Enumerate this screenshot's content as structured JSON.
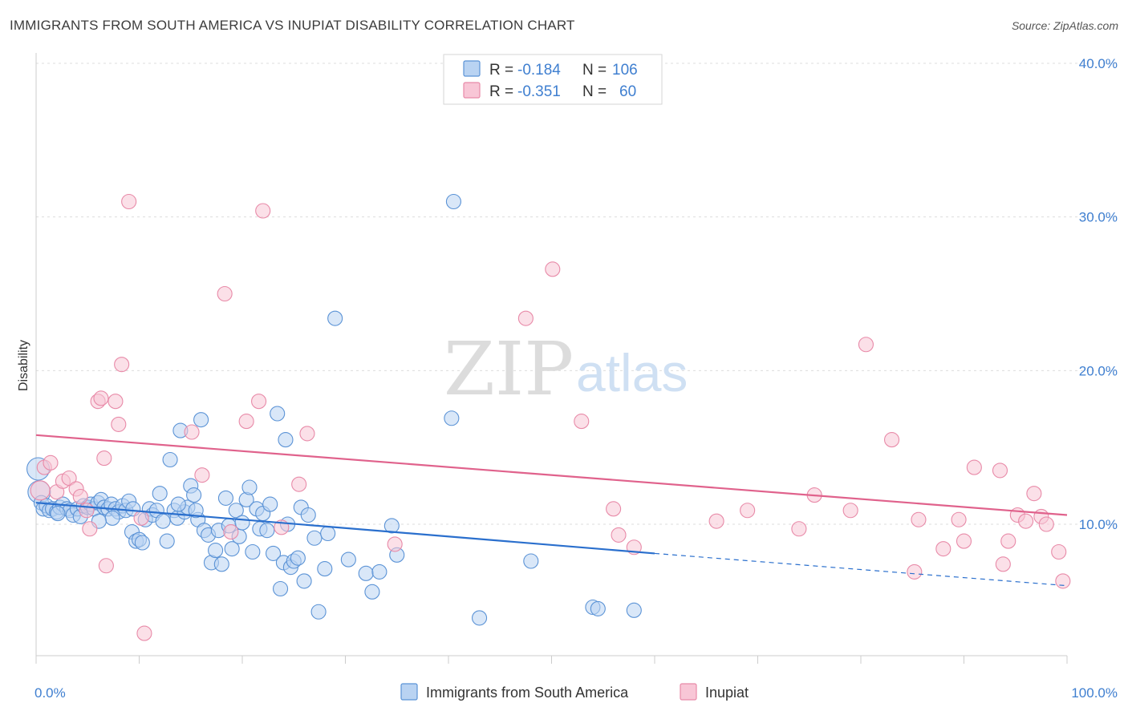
{
  "title": "IMMIGRANTS FROM SOUTH AMERICA VS INUPIAT DISABILITY CORRELATION CHART",
  "source": "Source: ZipAtlas.com",
  "watermark": {
    "zip": "ZIP",
    "atlas": "atlas"
  },
  "colors": {
    "blue_fill": "#b9d3f2",
    "blue_stroke": "#5b93d6",
    "blue_line": "#2a6fcd",
    "pink_fill": "#f8c6d6",
    "pink_stroke": "#e88aa8",
    "pink_line": "#e0628c",
    "axis_text": "#3f7fd0",
    "grid": "#dddddd"
  },
  "legend": {
    "rows": [
      {
        "r_label": "R = ",
        "r_value": "-0.184",
        "n_label": "N = ",
        "n_value": "106"
      },
      {
        "r_label": "R = ",
        "r_value": "-0.351",
        "n_label": "N = ",
        "n_value": "60"
      }
    ]
  },
  "chart_data": {
    "type": "scatter",
    "title": "IMMIGRANTS FROM SOUTH AMERICA VS INUPIAT DISABILITY CORRELATION CHART",
    "xlabel": "",
    "ylabel": "Disability",
    "xlim": [
      0,
      100
    ],
    "ylim": [
      0,
      42
    ],
    "x_tick_labels": [
      "0.0%",
      "100.0%"
    ],
    "y_ticks": [
      10,
      20,
      30,
      40
    ],
    "y_tick_labels": [
      "10.0%",
      "20.0%",
      "30.0%",
      "40.0%"
    ],
    "grid": "horizontal dashed",
    "legend_position": "top-center",
    "series": [
      {
        "name": "Immigrants from South America",
        "r": -0.184,
        "n": 106,
        "trend": {
          "x": [
            0,
            60
          ],
          "y": [
            11.4,
            8.1
          ],
          "dashed_extension": {
            "x": [
              60,
              100
            ],
            "y": [
              8.1,
              6.0
            ]
          }
        },
        "points": [
          [
            0.2,
            13.6
          ],
          [
            0.3,
            12.1
          ],
          [
            0.5,
            11.4
          ],
          [
            0.7,
            11.0
          ],
          [
            1.0,
            11.2
          ],
          [
            1.3,
            10.9
          ],
          [
            1.6,
            11.0
          ],
          [
            2.0,
            10.8
          ],
          [
            2.3,
            11.1
          ],
          [
            2.6,
            11.3
          ],
          [
            3.0,
            11.0
          ],
          [
            3.3,
            10.9
          ],
          [
            3.6,
            10.6
          ],
          [
            4.0,
            11.0
          ],
          [
            4.3,
            10.5
          ],
          [
            4.6,
            11.2
          ],
          [
            5.0,
            11.1
          ],
          [
            5.3,
            11.3
          ],
          [
            5.6,
            11.0
          ],
          [
            6.0,
            11.4
          ],
          [
            6.3,
            11.6
          ],
          [
            6.6,
            11.1
          ],
          [
            7.0,
            11.0
          ],
          [
            7.3,
            11.3
          ],
          [
            7.7,
            11.0
          ],
          [
            8.0,
            10.8
          ],
          [
            8.4,
            11.2
          ],
          [
            8.7,
            10.9
          ],
          [
            9.0,
            11.5
          ],
          [
            9.3,
            9.5
          ],
          [
            9.7,
            8.9
          ],
          [
            10.0,
            9.0
          ],
          [
            10.3,
            8.8
          ],
          [
            10.6,
            10.3
          ],
          [
            11.0,
            11.0
          ],
          [
            11.3,
            10.6
          ],
          [
            11.7,
            10.9
          ],
          [
            12.0,
            12.0
          ],
          [
            12.3,
            10.2
          ],
          [
            12.7,
            8.9
          ],
          [
            13.0,
            14.2
          ],
          [
            13.4,
            10.9
          ],
          [
            13.7,
            10.4
          ],
          [
            14.0,
            16.1
          ],
          [
            14.4,
            10.8
          ],
          [
            14.7,
            11.1
          ],
          [
            15.0,
            12.5
          ],
          [
            15.3,
            11.9
          ],
          [
            15.7,
            10.3
          ],
          [
            16.0,
            16.8
          ],
          [
            16.3,
            9.6
          ],
          [
            16.7,
            9.3
          ],
          [
            17.0,
            7.5
          ],
          [
            17.4,
            8.3
          ],
          [
            17.7,
            9.6
          ],
          [
            18.0,
            7.4
          ],
          [
            18.4,
            11.7
          ],
          [
            18.7,
            9.9
          ],
          [
            19.0,
            8.4
          ],
          [
            19.4,
            10.9
          ],
          [
            19.7,
            9.2
          ],
          [
            20.0,
            10.1
          ],
          [
            20.4,
            11.6
          ],
          [
            20.7,
            12.4
          ],
          [
            21.0,
            8.2
          ],
          [
            21.4,
            11.0
          ],
          [
            21.7,
            9.7
          ],
          [
            22.0,
            10.7
          ],
          [
            22.4,
            9.6
          ],
          [
            22.7,
            11.3
          ],
          [
            23.0,
            8.1
          ],
          [
            23.4,
            17.2
          ],
          [
            23.7,
            5.8
          ],
          [
            24.0,
            7.5
          ],
          [
            24.4,
            10.0
          ],
          [
            24.7,
            7.2
          ],
          [
            25.0,
            7.6
          ],
          [
            25.4,
            7.8
          ],
          [
            25.7,
            11.1
          ],
          [
            26.0,
            6.3
          ],
          [
            26.4,
            10.6
          ],
          [
            27.0,
            9.1
          ],
          [
            27.4,
            4.3
          ],
          [
            28.0,
            7.1
          ],
          [
            28.3,
            9.4
          ],
          [
            29.0,
            23.4
          ],
          [
            30.3,
            7.7
          ],
          [
            32.0,
            6.8
          ],
          [
            32.6,
            5.6
          ],
          [
            33.3,
            6.9
          ],
          [
            34.5,
            9.9
          ],
          [
            35.0,
            8.0
          ],
          [
            40.5,
            31.0
          ],
          [
            40.3,
            16.9
          ],
          [
            43.0,
            3.9
          ],
          [
            48.0,
            7.6
          ],
          [
            54.0,
            4.6
          ],
          [
            54.5,
            4.5
          ],
          [
            58.0,
            4.4
          ],
          [
            15.5,
            10.9
          ],
          [
            13.8,
            11.3
          ],
          [
            24.2,
            15.5
          ],
          [
            2.1,
            10.7
          ],
          [
            9.4,
            11.0
          ],
          [
            7.4,
            10.4
          ],
          [
            6.1,
            10.2
          ]
        ]
      },
      {
        "name": "Inupiat",
        "r": -0.351,
        "n": 60,
        "trend": {
          "x": [
            0,
            100
          ],
          "y": [
            15.8,
            10.6
          ]
        },
        "points": [
          [
            0.4,
            12.2
          ],
          [
            0.8,
            13.7
          ],
          [
            1.4,
            14.0
          ],
          [
            2.0,
            12.1
          ],
          [
            2.6,
            12.8
          ],
          [
            3.2,
            13.0
          ],
          [
            3.9,
            12.3
          ],
          [
            4.3,
            11.8
          ],
          [
            4.9,
            10.9
          ],
          [
            5.2,
            9.7
          ],
          [
            6.0,
            18.0
          ],
          [
            6.3,
            18.2
          ],
          [
            6.6,
            14.3
          ],
          [
            6.8,
            7.3
          ],
          [
            7.7,
            18.0
          ],
          [
            8.0,
            16.5
          ],
          [
            8.3,
            20.4
          ],
          [
            9.0,
            31.0
          ],
          [
            10.2,
            10.4
          ],
          [
            10.5,
            2.9
          ],
          [
            15.1,
            16.0
          ],
          [
            16.1,
            13.2
          ],
          [
            18.3,
            25.0
          ],
          [
            18.9,
            9.5
          ],
          [
            20.4,
            16.7
          ],
          [
            21.6,
            18.0
          ],
          [
            22.0,
            30.4
          ],
          [
            23.8,
            9.8
          ],
          [
            25.5,
            12.6
          ],
          [
            26.3,
            15.9
          ],
          [
            34.8,
            8.7
          ],
          [
            47.5,
            23.4
          ],
          [
            50.1,
            26.6
          ],
          [
            52.9,
            16.7
          ],
          [
            56.0,
            11.0
          ],
          [
            56.5,
            9.3
          ],
          [
            58.0,
            8.5
          ],
          [
            66.0,
            10.2
          ],
          [
            69.0,
            10.9
          ],
          [
            74.0,
            9.7
          ],
          [
            75.5,
            11.9
          ],
          [
            79.0,
            10.9
          ],
          [
            80.5,
            21.7
          ],
          [
            83.0,
            15.5
          ],
          [
            85.2,
            6.9
          ],
          [
            85.6,
            10.3
          ],
          [
            88.0,
            8.4
          ],
          [
            89.5,
            10.3
          ],
          [
            90.0,
            8.9
          ],
          [
            91.0,
            13.7
          ],
          [
            93.5,
            13.5
          ],
          [
            93.8,
            7.4
          ],
          [
            94.3,
            8.9
          ],
          [
            95.2,
            10.6
          ],
          [
            96.0,
            10.2
          ],
          [
            96.8,
            12.0
          ],
          [
            97.5,
            10.5
          ],
          [
            98.0,
            10.0
          ],
          [
            99.2,
            8.2
          ],
          [
            99.6,
            6.3
          ]
        ]
      }
    ]
  }
}
